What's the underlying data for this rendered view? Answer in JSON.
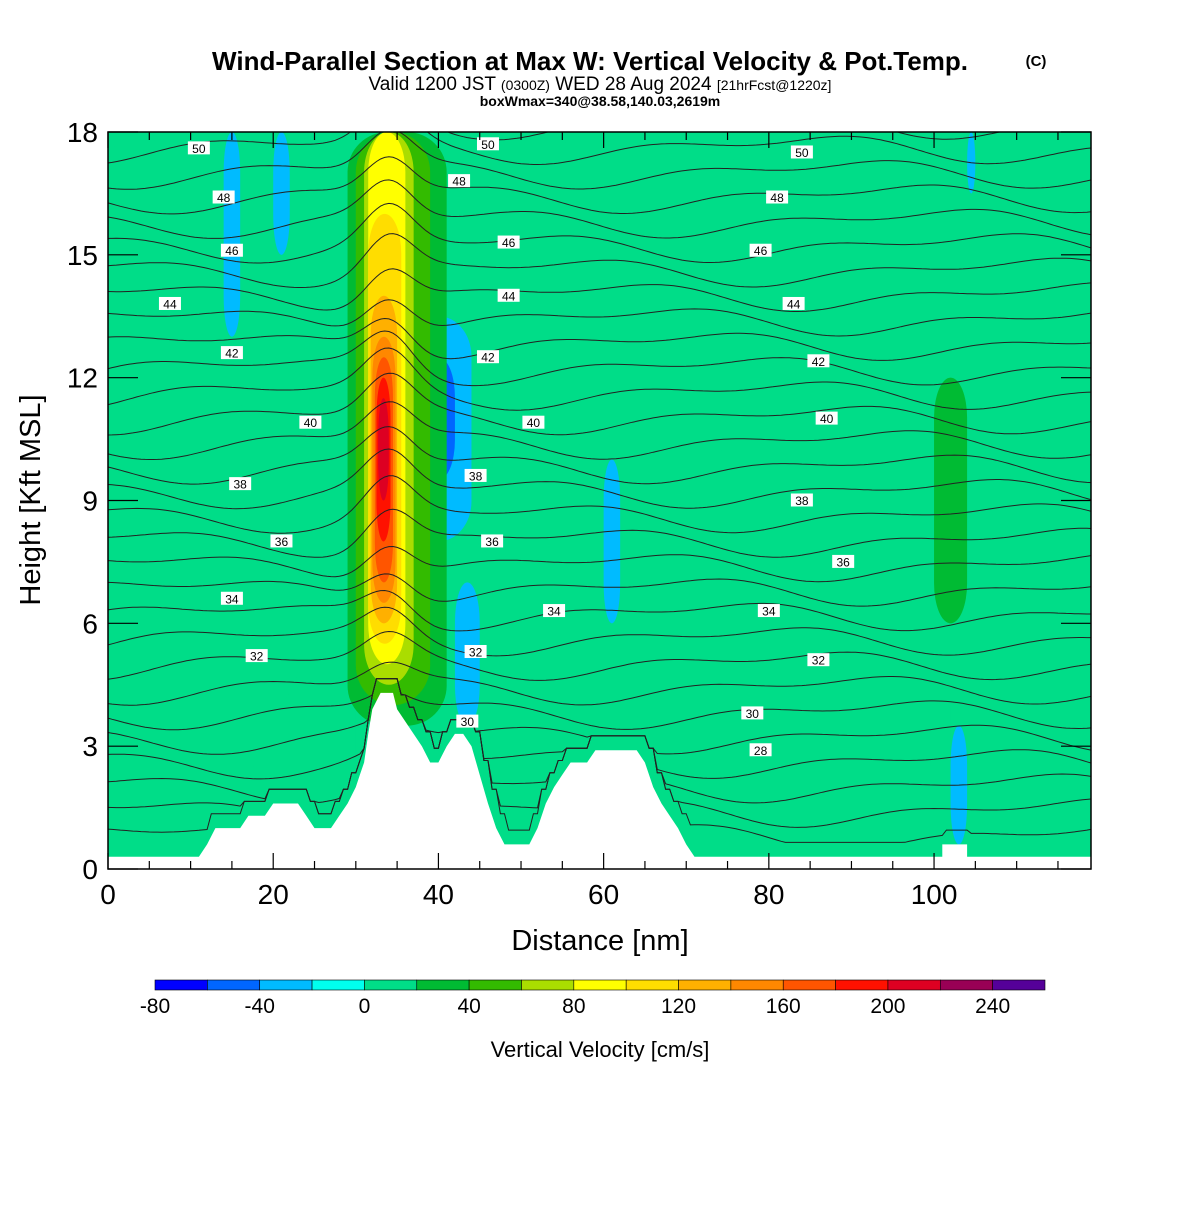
{
  "title": {
    "main": "Wind-Parallel Section at Max W: Vertical Velocity & Pot.Temp.",
    "copyright": "(C)",
    "valid_prefix": "Valid 1200 JST",
    "valid_utc": "(0300Z)",
    "valid_date": "WED 28 Aug 2024",
    "forecast_info": "[21hrFcst@1220z]",
    "box_info": "boxWmax=340@38.58,140.03,2619m"
  },
  "chart_data": {
    "type": "heatmap",
    "overlay": "contour",
    "xlabel": "Distance [nm]",
    "ylabel": "Height [Kft MSL]",
    "xlim": [
      0,
      119
    ],
    "ylim": [
      0,
      18
    ],
    "xticks": [
      "0",
      "20",
      "40",
      "60",
      "80",
      "100"
    ],
    "xtick_values": [
      0,
      20,
      40,
      60,
      80,
      100
    ],
    "yticks": [
      "0",
      "3",
      "6",
      "9",
      "12",
      "15",
      "18"
    ],
    "ytick_values": [
      0,
      3,
      6,
      9,
      12,
      15,
      18
    ],
    "grid": false,
    "colorbar": {
      "label": "Vertical Velocity [cm/s]",
      "tick_labels": [
        "-80",
        "-40",
        "0",
        "40",
        "80",
        "120",
        "160",
        "200",
        "240"
      ],
      "tick_values": [
        -80,
        -40,
        0,
        40,
        80,
        120,
        160,
        200,
        240
      ],
      "bounds": [
        -80,
        -60,
        -40,
        -20,
        0,
        20,
        40,
        60,
        80,
        100,
        120,
        140,
        160,
        180,
        200,
        220,
        240,
        260
      ],
      "colors": [
        "#0000ff",
        "#0066ff",
        "#00bbff",
        "#00ffee",
        "#00dd88",
        "#00bb33",
        "#33bb00",
        "#aadd00",
        "#ffff00",
        "#ffdd00",
        "#ffb000",
        "#ff8800",
        "#ff5500",
        "#ff1100",
        "#dd0022",
        "#990055",
        "#550099"
      ]
    },
    "terrain": [
      [
        0,
        0.3
      ],
      [
        11,
        0.3
      ],
      [
        12,
        0.6
      ],
      [
        13,
        1.0
      ],
      [
        16,
        1.0
      ],
      [
        17,
        1.3
      ],
      [
        19,
        1.3
      ],
      [
        20,
        1.6
      ],
      [
        23,
        1.6
      ],
      [
        24,
        1.3
      ],
      [
        25,
        1.0
      ],
      [
        27,
        1.0
      ],
      [
        28,
        1.3
      ],
      [
        29,
        1.6
      ],
      [
        30,
        2.0
      ],
      [
        30.5,
        2.3
      ],
      [
        31,
        2.6
      ],
      [
        31.5,
        3.3
      ],
      [
        32,
        3.9
      ],
      [
        33,
        4.3
      ],
      [
        34.5,
        4.3
      ],
      [
        35,
        3.9
      ],
      [
        36,
        3.6
      ],
      [
        37,
        3.3
      ],
      [
        38,
        3.0
      ],
      [
        39,
        2.6
      ],
      [
        40,
        2.6
      ],
      [
        41,
        3.0
      ],
      [
        42,
        3.3
      ],
      [
        43,
        3.3
      ],
      [
        44,
        3.0
      ],
      [
        45,
        2.3
      ],
      [
        46,
        1.6
      ],
      [
        47,
        1.0
      ],
      [
        48,
        0.6
      ],
      [
        51,
        0.6
      ],
      [
        52,
        1.0
      ],
      [
        53,
        1.6
      ],
      [
        54,
        2.0
      ],
      [
        55,
        2.3
      ],
      [
        56,
        2.6
      ],
      [
        58,
        2.6
      ],
      [
        59,
        2.9
      ],
      [
        64,
        2.9
      ],
      [
        65,
        2.6
      ],
      [
        66,
        2.0
      ],
      [
        67,
        1.6
      ],
      [
        68,
        1.3
      ],
      [
        69,
        1.0
      ],
      [
        70,
        0.6
      ],
      [
        71,
        0.3
      ],
      [
        101,
        0.3
      ],
      [
        101,
        0.6
      ],
      [
        104,
        0.6
      ],
      [
        104,
        0.3
      ],
      [
        119,
        0.3
      ]
    ],
    "cells": [
      {
        "x0": 0,
        "x1": 119,
        "y0": 0,
        "y1": 18,
        "w": 10
      },
      {
        "x0": 0,
        "x1": 119,
        "y0": 0,
        "y1": 1.6,
        "w": 10
      },
      {
        "x0": 0,
        "x1": 7,
        "y0": 4,
        "y1": 18,
        "w": 15
      },
      {
        "x0": 12,
        "x1": 18,
        "y0": 2,
        "y1": 18,
        "w": 10
      },
      {
        "x0": 16,
        "x1": 23,
        "y0": 4,
        "y1": 12,
        "w": 15
      },
      {
        "x0": 23,
        "x1": 30,
        "y0": 1.5,
        "y1": 8,
        "w": 15
      },
      {
        "x0": 44,
        "x1": 57,
        "y0": 0.3,
        "y1": 18,
        "w": 15
      },
      {
        "x0": 56,
        "x1": 76,
        "y0": 10,
        "y1": 18,
        "w": 15
      },
      {
        "x0": 64,
        "x1": 80,
        "y0": 0.3,
        "y1": 4.5,
        "w": 15
      },
      {
        "x0": 78,
        "x1": 95,
        "y0": 9,
        "y1": 18,
        "w": 15
      },
      {
        "x0": 86,
        "x1": 102,
        "y0": 0.3,
        "y1": 5,
        "w": 15
      },
      {
        "x0": 96,
        "x1": 110,
        "y0": 4,
        "y1": 16,
        "w": 15
      },
      {
        "x0": 110,
        "x1": 119,
        "y0": 10,
        "y1": 16,
        "w": 15
      },
      {
        "x0": 100,
        "x1": 104,
        "y0": 6,
        "y1": 12,
        "w": 30
      },
      {
        "x0": 14,
        "x1": 16,
        "y0": 13,
        "y1": 18,
        "w": -30
      },
      {
        "x0": 20,
        "x1": 22,
        "y0": 15,
        "y1": 18,
        "w": -30
      },
      {
        "x0": 36,
        "x1": 44,
        "y0": 8,
        "y1": 13.5,
        "w": -30
      },
      {
        "x0": 38,
        "x1": 42,
        "y0": 9.5,
        "y1": 12.5,
        "w": -50
      },
      {
        "x0": 35,
        "x1": 37,
        "y0": 10,
        "y1": 11.5,
        "w": -70
      },
      {
        "x0": 42,
        "x1": 45,
        "y0": 3.5,
        "y1": 7,
        "w": -30
      },
      {
        "x0": 60,
        "x1": 62,
        "y0": 6,
        "y1": 10,
        "w": -30
      },
      {
        "x0": 102,
        "x1": 104,
        "y0": 0.6,
        "y1": 3.5,
        "w": -30
      },
      {
        "x0": 104,
        "x1": 105,
        "y0": 16.5,
        "y1": 18,
        "w": -30
      },
      {
        "x0": 29,
        "x1": 41,
        "y0": 3.5,
        "y1": 18,
        "w": 30
      },
      {
        "x0": 30,
        "x1": 39,
        "y0": 4,
        "y1": 18,
        "w": 50
      },
      {
        "x0": 31,
        "x1": 37,
        "y0": 4.5,
        "y1": 18,
        "w": 70
      },
      {
        "x0": 31.5,
        "x1": 36,
        "y0": 5,
        "y1": 18,
        "w": 90
      },
      {
        "x0": 31.5,
        "x1": 35.5,
        "y0": 5.5,
        "y1": 16,
        "w": 110
      },
      {
        "x0": 31.8,
        "x1": 35,
        "y0": 6,
        "y1": 14,
        "w": 130
      },
      {
        "x0": 32,
        "x1": 34.8,
        "y0": 6.5,
        "y1": 13,
        "w": 150
      },
      {
        "x0": 32.3,
        "x1": 34.5,
        "y0": 7,
        "y1": 12.5,
        "w": 170
      },
      {
        "x0": 32.5,
        "x1": 34.2,
        "y0": 8,
        "y1": 12,
        "w": 190
      },
      {
        "x0": 32.7,
        "x1": 34,
        "y0": 9,
        "y1": 11.5,
        "w": 210
      }
    ],
    "isentropes": [
      {
        "theta": 28,
        "y_base": 2.9,
        "label_x": 79,
        "label": "28"
      },
      {
        "theta": 30,
        "y_base": 3.8,
        "label_x": 78,
        "label": "30"
      },
      {
        "theta": 32,
        "y_base": 5.1,
        "label_x": 86,
        "label": "32"
      },
      {
        "theta": 34,
        "y_base": 6.3,
        "label_x": 80,
        "label": "34"
      },
      {
        "theta": 36,
        "y_base": 7.5,
        "label_x": 89,
        "label": "36"
      },
      {
        "theta": 38,
        "y_base": 9.0,
        "label_x": 84,
        "label": "38"
      },
      {
        "theta": 40,
        "y_base": 11.0,
        "label_x": 87,
        "label": "40"
      },
      {
        "theta": 42,
        "y_base": 12.4,
        "label_x": 86,
        "label": "42"
      },
      {
        "theta": 44,
        "y_base": 13.8,
        "label_x": 83,
        "label": "44"
      },
      {
        "theta": 46,
        "y_base": 15.1,
        "label_x": 79,
        "label": "46"
      },
      {
        "theta": 48,
        "y_base": 16.4,
        "label_x": 81,
        "label": "48"
      },
      {
        "theta": 50,
        "y_base": 17.5,
        "label_x": 84,
        "label": "50"
      }
    ],
    "secondary_labels": [
      {
        "label": "50",
        "x": 11,
        "y": 17.6
      },
      {
        "label": "48",
        "x": 14,
        "y": 16.4
      },
      {
        "label": "46",
        "x": 15,
        "y": 15.1
      },
      {
        "label": "44",
        "x": 7.5,
        "y": 13.8
      },
      {
        "label": "42",
        "x": 15,
        "y": 12.6
      },
      {
        "label": "40",
        "x": 24.5,
        "y": 10.9
      },
      {
        "label": "38",
        "x": 16,
        "y": 9.4
      },
      {
        "label": "36",
        "x": 21,
        "y": 8.0
      },
      {
        "label": "34",
        "x": 15,
        "y": 6.6
      },
      {
        "label": "32",
        "x": 18,
        "y": 5.2
      },
      {
        "label": "50",
        "x": 46,
        "y": 17.7
      },
      {
        "label": "48",
        "x": 42.5,
        "y": 16.8
      },
      {
        "label": "46",
        "x": 48.5,
        "y": 15.3
      },
      {
        "label": "44",
        "x": 48.5,
        "y": 14.0
      },
      {
        "label": "42",
        "x": 46,
        "y": 12.5
      },
      {
        "label": "40",
        "x": 51.5,
        "y": 10.9
      },
      {
        "label": "38",
        "x": 44.5,
        "y": 9.6
      },
      {
        "label": "36",
        "x": 46.5,
        "y": 8.0
      },
      {
        "label": "34",
        "x": 54,
        "y": 6.3
      },
      {
        "label": "32",
        "x": 44.5,
        "y": 5.3
      },
      {
        "label": "30",
        "x": 43.5,
        "y": 3.6
      }
    ]
  },
  "colors": {
    "terrain": "#ffffff",
    "contour": "#000000",
    "frame": "#000000"
  }
}
